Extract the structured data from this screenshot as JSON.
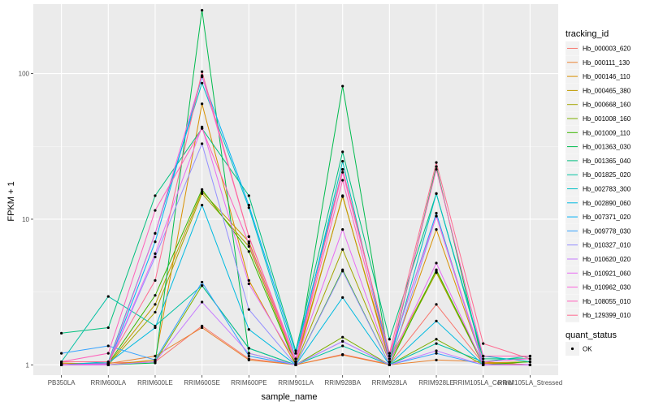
{
  "chart_data": {
    "type": "line",
    "xlabel": "sample_name",
    "ylabel": "FPKM + 1",
    "y_scale": "log10",
    "ylim": [
      0.85,
      300
    ],
    "y_ticks": [
      1,
      10,
      100
    ],
    "y_tick_labels": [
      "1",
      "10",
      "100"
    ],
    "grid": true,
    "categories": [
      "PB350LA",
      "RRIM600LA",
      "RRIM600LE",
      "RRIM600SE",
      "RRIM600PE",
      "RRIM901LA",
      "RRIM928BA",
      "RRIM928LA",
      "RRIM928LE",
      "RRIM105LA_Control",
      "RRIM105LA_Stressed"
    ],
    "legend": {
      "title": "tracking_id",
      "placement": "right",
      "entries": [
        "Hb_000003_620",
        "Hb_000111_130",
        "Hb_000146_110",
        "Hb_000465_380",
        "Hb_000668_160",
        "Hb_001008_160",
        "Hb_001009_110",
        "Hb_001363_030",
        "Hb_001365_040",
        "Hb_001825_020",
        "Hb_002783_300",
        "Hb_002890_060",
        "Hb_007371_020",
        "Hb_009778_030",
        "Hb_010327_010",
        "Hb_010620_020",
        "Hb_010921_060",
        "Hb_010962_030",
        "Hb_108055_010",
        "Hb_129399_010"
      ]
    },
    "shape_legend": {
      "title": "quant_status",
      "entries": [
        "OK"
      ]
    },
    "series": [
      {
        "name": "Hb_000003_620",
        "color": "#F8766D",
        "values": [
          1.02,
          1.03,
          1.05,
          1.85,
          1.1,
          1.0,
          1.18,
          1.01,
          2.6,
          1.02,
          1.05
        ]
      },
      {
        "name": "Hb_000111_130",
        "color": "#EA8331",
        "values": [
          1.0,
          1.02,
          1.15,
          1.8,
          1.08,
          1.0,
          1.17,
          1.0,
          1.08,
          1.05,
          1.0
        ]
      },
      {
        "name": "Hb_000146_110",
        "color": "#D89000",
        "values": [
          1.0,
          1.0,
          1.08,
          62.0,
          3.8,
          1.0,
          14.5,
          1.05,
          8.5,
          1.03,
          1.0
        ]
      },
      {
        "name": "Hb_000465_380",
        "color": "#C09B00",
        "values": [
          1.03,
          1.01,
          2.6,
          15.5,
          7.0,
          1.05,
          14.3,
          1.1,
          4.4,
          1.03,
          1.05
        ]
      },
      {
        "name": "Hb_000668_160",
        "color": "#A3A500",
        "values": [
          1.0,
          1.0,
          2.3,
          15.0,
          6.5,
          1.02,
          6.2,
          1.05,
          4.3,
          1.0,
          1.0
        ]
      },
      {
        "name": "Hb_001008_160",
        "color": "#7CAE00",
        "values": [
          1.0,
          1.0,
          1.05,
          3.5,
          1.3,
          1.0,
          1.55,
          1.0,
          1.5,
          1.0,
          1.0
        ]
      },
      {
        "name": "Hb_001009_110",
        "color": "#39B600",
        "values": [
          1.0,
          1.02,
          3.0,
          16.0,
          6.0,
          1.0,
          4.5,
          1.0,
          4.5,
          1.0,
          1.05
        ]
      },
      {
        "name": "Hb_001363_030",
        "color": "#00BB4E",
        "values": [
          1.0,
          1.0,
          1.03,
          272,
          1.2,
          1.0,
          82.0,
          1.05,
          23.0,
          1.0,
          1.0
        ]
      },
      {
        "name": "Hb_001365_040",
        "color": "#00BF7D",
        "values": [
          1.65,
          1.8,
          14.5,
          42.0,
          14.5,
          1.25,
          29.0,
          1.5,
          15.0,
          1.1,
          1.1
        ]
      },
      {
        "name": "Hb_001825_020",
        "color": "#00C1A3",
        "values": [
          1.05,
          2.95,
          1.85,
          3.5,
          1.3,
          1.0,
          1.35,
          1.0,
          1.4,
          1.05,
          1.15
        ]
      },
      {
        "name": "Hb_002783_300",
        "color": "#00BFC4",
        "values": [
          1.0,
          1.05,
          8.0,
          86.0,
          12.0,
          1.1,
          25.0,
          1.05,
          15.0,
          1.15,
          1.05
        ]
      },
      {
        "name": "Hb_002890_060",
        "color": "#00BAE0",
        "values": [
          1.0,
          1.03,
          1.8,
          12.5,
          1.75,
          1.0,
          2.9,
          1.0,
          2.0,
          1.0,
          1.0
        ]
      },
      {
        "name": "Hb_007371_020",
        "color": "#00B0F6",
        "values": [
          1.0,
          1.0,
          7.0,
          95.0,
          12.5,
          1.2,
          22.0,
          1.15,
          11.0,
          1.0,
          1.0
        ]
      },
      {
        "name": "Hb_009778_030",
        "color": "#35A2FF",
        "values": [
          1.2,
          1.35,
          1.08,
          3.7,
          1.15,
          1.0,
          1.45,
          1.0,
          1.2,
          1.0,
          1.0
        ]
      },
      {
        "name": "Hb_010327_010",
        "color": "#9590FF",
        "values": [
          1.0,
          1.0,
          5.5,
          33.0,
          2.4,
          1.0,
          4.4,
          1.0,
          10.5,
          1.0,
          1.0
        ]
      },
      {
        "name": "Hb_010620_020",
        "color": "#C77CFF",
        "values": [
          1.0,
          1.0,
          1.05,
          2.7,
          1.2,
          1.0,
          1.45,
          1.0,
          1.25,
          1.0,
          1.0
        ]
      },
      {
        "name": "Hb_010921_060",
        "color": "#E76BF3",
        "values": [
          1.0,
          1.0,
          5.8,
          43.0,
          3.6,
          1.05,
          8.5,
          1.05,
          5.0,
          1.0,
          1.0
        ]
      },
      {
        "name": "Hb_010962_030",
        "color": "#FA62DB",
        "values": [
          1.0,
          1.02,
          8.0,
          97.0,
          7.6,
          1.1,
          21.0,
          1.2,
          10.5,
          1.05,
          1.1
        ]
      },
      {
        "name": "Hb_108055_010",
        "color": "#FF62BC",
        "values": [
          1.05,
          1.2,
          11.5,
          42.0,
          6.8,
          1.05,
          18.5,
          1.1,
          22.0,
          1.15,
          1.15
        ]
      },
      {
        "name": "Hb_129399_010",
        "color": "#FF6C91",
        "values": [
          1.05,
          1.05,
          3.8,
          103,
          7.6,
          1.05,
          22.0,
          1.2,
          24.5,
          1.4,
          1.1
        ]
      }
    ]
  }
}
